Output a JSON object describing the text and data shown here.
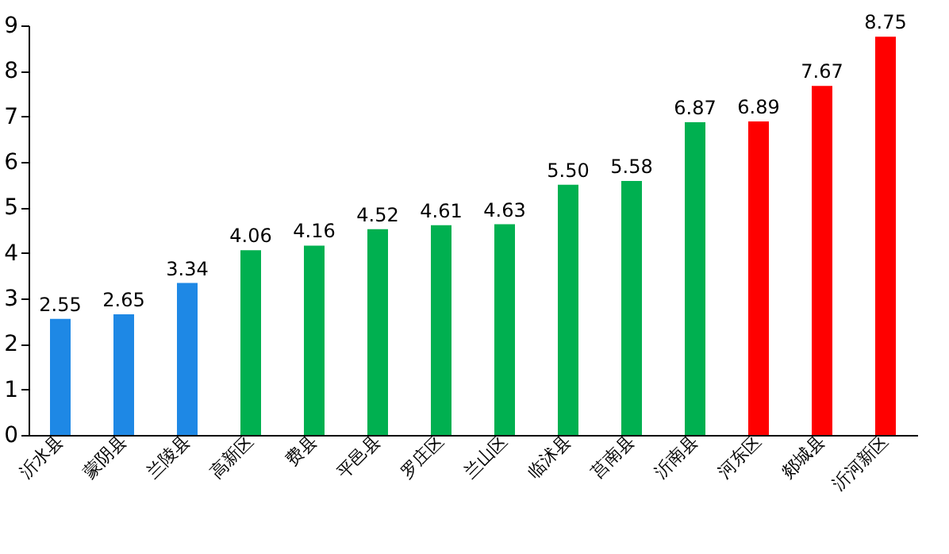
{
  "chart_data": {
    "type": "bar",
    "categories": [
      "沂水县",
      "蒙阴县",
      "兰陵县",
      "高新区",
      "费县",
      "平邑县",
      "罗庄区",
      "兰山区",
      "临沭县",
      "莒南县",
      "沂南县",
      "河东区",
      "郯城县",
      "沂河新区"
    ],
    "values": [
      2.55,
      2.65,
      3.34,
      4.06,
      4.16,
      4.52,
      4.61,
      4.63,
      5.5,
      5.58,
      6.87,
      6.89,
      7.67,
      8.75
    ],
    "value_labels": [
      "2.55",
      "2.65",
      "3.34",
      "4.06",
      "4.16",
      "4.52",
      "4.61",
      "4.63",
      "5.50",
      "5.58",
      "6.87",
      "6.89",
      "7.67",
      "8.75"
    ],
    "colors": [
      "#1e88e5",
      "#1e88e5",
      "#1e88e5",
      "#00b050",
      "#00b050",
      "#00b050",
      "#00b050",
      "#00b050",
      "#00b050",
      "#00b050",
      "#00b050",
      "#ff0000",
      "#ff0000",
      "#ff0000"
    ],
    "ylim": [
      0,
      9
    ],
    "yticks": [
      0,
      1,
      2,
      3,
      4,
      5,
      6,
      7,
      8,
      9
    ],
    "grid": false
  }
}
